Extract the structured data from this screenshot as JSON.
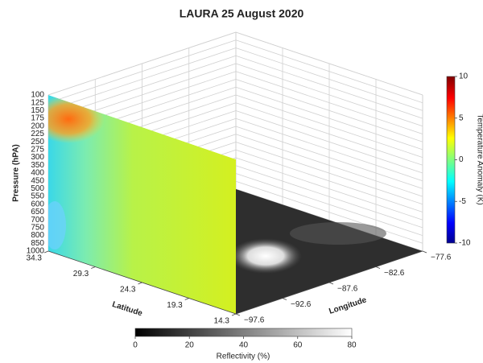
{
  "chart_data": {
    "type": "slice3d",
    "title": "LAURA 25 August 2020",
    "zlabel": "Pressure (hPA)",
    "zcategories": [
      100,
      125,
      150,
      175,
      200,
      225,
      250,
      275,
      300,
      350,
      400,
      450,
      500,
      550,
      600,
      650,
      700,
      750,
      800,
      850,
      1000
    ],
    "xlabel": "Latitude",
    "xlim": [
      34.3,
      14.3
    ],
    "xticks": [
      34.3,
      29.3,
      24.3,
      19.3,
      14.3
    ],
    "ylabel": "Longitude",
    "ylim": [
      -97.6,
      -77.6
    ],
    "yticks": [
      {
        "value": -97.6,
        "label": "−97.6"
      },
      {
        "value": -92.6,
        "label": "−92.6"
      },
      {
        "value": -87.6,
        "label": "−87.6"
      },
      {
        "value": -82.6,
        "label": "−82.6"
      },
      {
        "value": -77.6,
        "label": "−77.6"
      }
    ],
    "colorbar": {
      "label": "Temperature Anomaly (K)",
      "lim": [
        -10,
        10
      ],
      "ticks": [
        -10,
        -5,
        0,
        5,
        10
      ]
    },
    "colorbar2": {
      "label": "Reflectivity (%)",
      "lim": [
        0,
        80
      ],
      "ticks": [
        0,
        20,
        40,
        60,
        80
      ]
    },
    "grid": true
  }
}
